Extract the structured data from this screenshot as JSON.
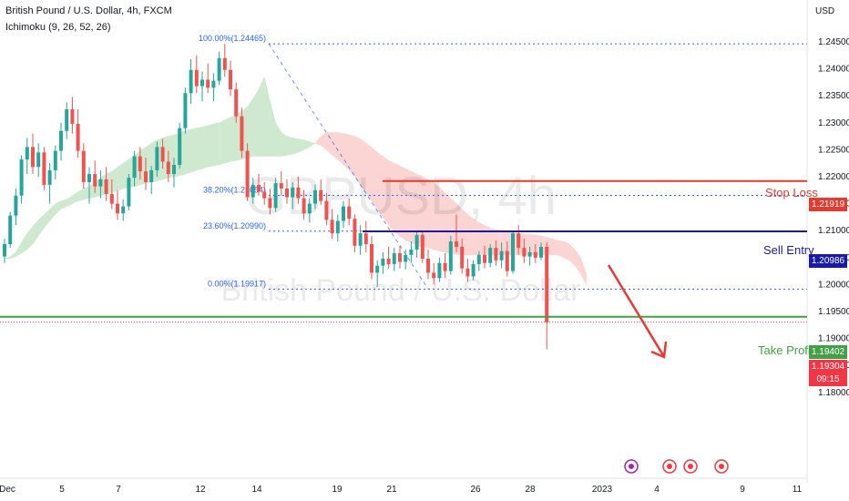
{
  "header": {
    "symbol_title": "British Pound / U.S. Dollar, 4h, FXCM",
    "indicator": "Ichimoku (9, 26, 52, 26)",
    "currency": "USD"
  },
  "watermark": {
    "ticker": "GBPUSD, 4h",
    "name": "British Pound / U.S. Dollar"
  },
  "colors": {
    "bull": "#26a69a",
    "bear": "#ef5350",
    "stop_loss": "#e03c31",
    "sell_entry": "#1a1aa6",
    "take_profit": "#43a047",
    "fib": "#2962ff",
    "cloud_bull": "#cfe9d0",
    "cloud_bear": "#fbd5d3",
    "last_price": "#f23645"
  },
  "chart_data": {
    "type": "candlestick",
    "title": "British Pound / U.S. Dollar, 4h, FXCM",
    "ylim": [
      1.175,
      1.2475
    ],
    "y_ticks": [
      "1.24500",
      "1.24000",
      "1.23500",
      "1.23000",
      "1.22500",
      "1.22000",
      "1.21500",
      "1.21000",
      "1.20500",
      "1.20000",
      "1.19500",
      "1.19000",
      "1.18500",
      "1.18000"
    ],
    "x_ticks": [
      "Dec",
      "5",
      "7",
      "12",
      "14",
      "19",
      "21",
      "26",
      "28",
      "2023",
      "4",
      "9",
      "11"
    ],
    "fibonacci": [
      {
        "label": "100.00%(1.24465)",
        "price": 1.24465
      },
      {
        "label": "38.20%(1.21654)",
        "price": 1.21654
      },
      {
        "label": "23.60%(1.20990)",
        "price": 1.2099
      },
      {
        "label": "0.00%(1.19917)",
        "price": 1.19917
      }
    ],
    "levels": [
      {
        "name": "Stop Loss",
        "price": 1.21919,
        "tag": "1.21919"
      },
      {
        "name": "Sell Entry",
        "price": 1.20986,
        "tag": "1.20986"
      },
      {
        "name": "Take Profit",
        "price": 1.19402,
        "tag": "1.19402"
      }
    ],
    "last_price": {
      "tag": "1.19304",
      "countdown": "09:15",
      "price": 1.19304
    },
    "candles": [
      {
        "o": 1.2052,
        "h": 1.2085,
        "l": 1.204,
        "c": 1.2075
      },
      {
        "o": 1.2075,
        "h": 1.2135,
        "l": 1.2068,
        "c": 1.2128
      },
      {
        "o": 1.2128,
        "h": 1.2178,
        "l": 1.211,
        "c": 1.2165
      },
      {
        "o": 1.2165,
        "h": 1.224,
        "l": 1.215,
        "c": 1.2232
      },
      {
        "o": 1.2232,
        "h": 1.2272,
        "l": 1.2205,
        "c": 1.2255
      },
      {
        "o": 1.2255,
        "h": 1.228,
        "l": 1.2205,
        "c": 1.2218
      },
      {
        "o": 1.2218,
        "h": 1.2262,
        "l": 1.22,
        "c": 1.2245
      },
      {
        "o": 1.2245,
        "h": 1.2255,
        "l": 1.2175,
        "c": 1.2185
      },
      {
        "o": 1.2185,
        "h": 1.2225,
        "l": 1.215,
        "c": 1.2212
      },
      {
        "o": 1.2212,
        "h": 1.2258,
        "l": 1.2195,
        "c": 1.2248
      },
      {
        "o": 1.2248,
        "h": 1.23,
        "l": 1.223,
        "c": 1.2285
      },
      {
        "o": 1.2285,
        "h": 1.2338,
        "l": 1.227,
        "c": 1.2325
      },
      {
        "o": 1.2325,
        "h": 1.2348,
        "l": 1.228,
        "c": 1.2298
      },
      {
        "o": 1.2298,
        "h": 1.2325,
        "l": 1.2235,
        "c": 1.2248
      },
      {
        "o": 1.2248,
        "h": 1.2262,
        "l": 1.2178,
        "c": 1.219
      },
      {
        "o": 1.219,
        "h": 1.2218,
        "l": 1.215,
        "c": 1.2205
      },
      {
        "o": 1.2205,
        "h": 1.223,
        "l": 1.217,
        "c": 1.2182
      },
      {
        "o": 1.2182,
        "h": 1.2212,
        "l": 1.216,
        "c": 1.2195
      },
      {
        "o": 1.2195,
        "h": 1.2218,
        "l": 1.2155,
        "c": 1.2168
      },
      {
        "o": 1.2168,
        "h": 1.2195,
        "l": 1.214,
        "c": 1.215
      },
      {
        "o": 1.215,
        "h": 1.2175,
        "l": 1.212,
        "c": 1.2132
      },
      {
        "o": 1.2132,
        "h": 1.2158,
        "l": 1.2118,
        "c": 1.2145
      },
      {
        "o": 1.2145,
        "h": 1.2205,
        "l": 1.2138,
        "c": 1.2198
      },
      {
        "o": 1.2198,
        "h": 1.2248,
        "l": 1.2182,
        "c": 1.2238
      },
      {
        "o": 1.2238,
        "h": 1.2255,
        "l": 1.2195,
        "c": 1.221
      },
      {
        "o": 1.221,
        "h": 1.2235,
        "l": 1.2175,
        "c": 1.219
      },
      {
        "o": 1.219,
        "h": 1.222,
        "l": 1.2168,
        "c": 1.2212
      },
      {
        "o": 1.2212,
        "h": 1.2265,
        "l": 1.22,
        "c": 1.2255
      },
      {
        "o": 1.2255,
        "h": 1.227,
        "l": 1.2215,
        "c": 1.2228
      },
      {
        "o": 1.2228,
        "h": 1.2248,
        "l": 1.219,
        "c": 1.2205
      },
      {
        "o": 1.2205,
        "h": 1.2235,
        "l": 1.218,
        "c": 1.2222
      },
      {
        "o": 1.2222,
        "h": 1.23,
        "l": 1.2215,
        "c": 1.229
      },
      {
        "o": 1.229,
        "h": 1.2365,
        "l": 1.228,
        "c": 1.2355
      },
      {
        "o": 1.2355,
        "h": 1.2418,
        "l": 1.2335,
        "c": 1.2398
      },
      {
        "o": 1.2398,
        "h": 1.2425,
        "l": 1.2355,
        "c": 1.2368
      },
      {
        "o": 1.2368,
        "h": 1.2395,
        "l": 1.234,
        "c": 1.238
      },
      {
        "o": 1.238,
        "h": 1.241,
        "l": 1.2355,
        "c": 1.2365
      },
      {
        "o": 1.2365,
        "h": 1.2392,
        "l": 1.234,
        "c": 1.2378
      },
      {
        "o": 1.2378,
        "h": 1.2432,
        "l": 1.237,
        "c": 1.242
      },
      {
        "o": 1.242,
        "h": 1.2446,
        "l": 1.2385,
        "c": 1.2398
      },
      {
        "o": 1.2398,
        "h": 1.2415,
        "l": 1.235,
        "c": 1.2362
      },
      {
        "o": 1.2362,
        "h": 1.2375,
        "l": 1.23,
        "c": 1.2312
      },
      {
        "o": 1.2312,
        "h": 1.2328,
        "l": 1.2235,
        "c": 1.2248
      },
      {
        "o": 1.2248,
        "h": 1.2262,
        "l": 1.2155,
        "c": 1.2162
      },
      {
        "o": 1.2162,
        "h": 1.2198,
        "l": 1.215,
        "c": 1.2185
      },
      {
        "o": 1.2185,
        "h": 1.2205,
        "l": 1.2165,
        "c": 1.2172
      },
      {
        "o": 1.2172,
        "h": 1.219,
        "l": 1.2148,
        "c": 1.216
      },
      {
        "o": 1.216,
        "h": 1.2178,
        "l": 1.213,
        "c": 1.2142
      },
      {
        "o": 1.2142,
        "h": 1.2198,
        "l": 1.2135,
        "c": 1.2188
      },
      {
        "o": 1.2188,
        "h": 1.221,
        "l": 1.2165,
        "c": 1.2178
      },
      {
        "o": 1.2178,
        "h": 1.2195,
        "l": 1.215,
        "c": 1.2162
      },
      {
        "o": 1.2162,
        "h": 1.219,
        "l": 1.214,
        "c": 1.218
      },
      {
        "o": 1.218,
        "h": 1.22,
        "l": 1.215,
        "c": 1.216
      },
      {
        "o": 1.216,
        "h": 1.2175,
        "l": 1.212,
        "c": 1.2132
      },
      {
        "o": 1.2132,
        "h": 1.216,
        "l": 1.2115,
        "c": 1.215
      },
      {
        "o": 1.215,
        "h": 1.2185,
        "l": 1.214,
        "c": 1.2175
      },
      {
        "o": 1.2175,
        "h": 1.2195,
        "l": 1.2148,
        "c": 1.2155
      },
      {
        "o": 1.2155,
        "h": 1.217,
        "l": 1.211,
        "c": 1.212
      },
      {
        "o": 1.212,
        "h": 1.214,
        "l": 1.2085,
        "c": 1.2095
      },
      {
        "o": 1.2095,
        "h": 1.213,
        "l": 1.208,
        "c": 1.2118
      },
      {
        "o": 1.2118,
        "h": 1.2155,
        "l": 1.2105,
        "c": 1.2145
      },
      {
        "o": 1.2145,
        "h": 1.216,
        "l": 1.211,
        "c": 1.2122
      },
      {
        "o": 1.2122,
        "h": 1.213,
        "l": 1.206,
        "c": 1.2072
      },
      {
        "o": 1.2072,
        "h": 1.211,
        "l": 1.2055,
        "c": 1.2095
      },
      {
        "o": 1.2095,
        "h": 1.2118,
        "l": 1.206,
        "c": 1.2075
      },
      {
        "o": 1.2075,
        "h": 1.209,
        "l": 1.201,
        "c": 1.2022
      },
      {
        "o": 1.2022,
        "h": 1.2045,
        "l": 1.1995,
        "c": 1.2035
      },
      {
        "o": 1.2035,
        "h": 1.206,
        "l": 1.202,
        "c": 1.2048
      },
      {
        "o": 1.2048,
        "h": 1.207,
        "l": 1.203,
        "c": 1.2038
      },
      {
        "o": 1.2038,
        "h": 1.2068,
        "l": 1.2025,
        "c": 1.2058
      },
      {
        "o": 1.2058,
        "h": 1.2072,
        "l": 1.203,
        "c": 1.2042
      },
      {
        "o": 1.2042,
        "h": 1.2065,
        "l": 1.2028,
        "c": 1.2055
      },
      {
        "o": 1.2055,
        "h": 1.208,
        "l": 1.204,
        "c": 1.2065
      },
      {
        "o": 1.2065,
        "h": 1.21,
        "l": 1.205,
        "c": 1.2092
      },
      {
        "o": 1.2092,
        "h": 1.2098,
        "l": 1.204,
        "c": 1.2048
      },
      {
        "o": 1.2048,
        "h": 1.2065,
        "l": 1.201,
        "c": 1.2022
      },
      {
        "o": 1.2022,
        "h": 1.204,
        "l": 1.2,
        "c": 1.2012
      },
      {
        "o": 1.2012,
        "h": 1.205,
        "l": 1.2005,
        "c": 1.204
      },
      {
        "o": 1.204,
        "h": 1.2058,
        "l": 1.2012,
        "c": 1.2025
      },
      {
        "o": 1.2025,
        "h": 1.209,
        "l": 1.2018,
        "c": 1.208
      },
      {
        "o": 1.208,
        "h": 1.213,
        "l": 1.206,
        "c": 1.207
      },
      {
        "o": 1.207,
        "h": 1.2085,
        "l": 1.202,
        "c": 1.203
      },
      {
        "o": 1.203,
        "h": 1.2048,
        "l": 1.2005,
        "c": 1.2015
      },
      {
        "o": 1.2015,
        "h": 1.2045,
        "l": 1.2008,
        "c": 1.2038
      },
      {
        "o": 1.2038,
        "h": 1.2062,
        "l": 1.2025,
        "c": 1.2055
      },
      {
        "o": 1.2055,
        "h": 1.2072,
        "l": 1.203,
        "c": 1.204
      },
      {
        "o": 1.204,
        "h": 1.2075,
        "l": 1.2032,
        "c": 1.2068
      },
      {
        "o": 1.2068,
        "h": 1.2082,
        "l": 1.2035,
        "c": 1.2045
      },
      {
        "o": 1.2045,
        "h": 1.2078,
        "l": 1.203,
        "c": 1.2062
      },
      {
        "o": 1.2062,
        "h": 1.208,
        "l": 1.2015,
        "c": 1.2025
      },
      {
        "o": 1.2025,
        "h": 1.21,
        "l": 1.202,
        "c": 1.2095
      },
      {
        "o": 1.2095,
        "h": 1.211,
        "l": 1.2055,
        "c": 1.2068
      },
      {
        "o": 1.2068,
        "h": 1.2085,
        "l": 1.204,
        "c": 1.2052
      },
      {
        "o": 1.2052,
        "h": 1.207,
        "l": 1.2035,
        "c": 1.206
      },
      {
        "o": 1.206,
        "h": 1.2075,
        "l": 1.204,
        "c": 1.205
      },
      {
        "o": 1.205,
        "h": 1.2078,
        "l": 1.2045,
        "c": 1.207
      },
      {
        "o": 1.207,
        "h": 1.2078,
        "l": 1.188,
        "c": 1.193
      }
    ],
    "ichimoku_cloud": [
      {
        "a": 1.2048,
        "b": 1.2048
      },
      {
        "a": 1.2052,
        "b": 1.2048
      },
      {
        "a": 1.206,
        "b": 1.2052
      },
      {
        "a": 1.2078,
        "b": 1.2058
      },
      {
        "a": 1.2095,
        "b": 1.2065
      },
      {
        "a": 1.2108,
        "b": 1.2075
      },
      {
        "a": 1.212,
        "b": 1.209
      },
      {
        "a": 1.213,
        "b": 1.2105
      },
      {
        "a": 1.214,
        "b": 1.2118
      },
      {
        "a": 1.215,
        "b": 1.213
      },
      {
        "a": 1.2155,
        "b": 1.214
      },
      {
        "a": 1.2158,
        "b": 1.2145
      },
      {
        "a": 1.2165,
        "b": 1.215
      },
      {
        "a": 1.2172,
        "b": 1.2155
      },
      {
        "a": 1.2178,
        "b": 1.2158
      },
      {
        "a": 1.2182,
        "b": 1.216
      },
      {
        "a": 1.219,
        "b": 1.2162
      },
      {
        "a": 1.2198,
        "b": 1.2165
      },
      {
        "a": 1.2205,
        "b": 1.2168
      },
      {
        "a": 1.221,
        "b": 1.217
      },
      {
        "a": 1.2218,
        "b": 1.2175
      },
      {
        "a": 1.2225,
        "b": 1.2178
      },
      {
        "a": 1.2232,
        "b": 1.218
      },
      {
        "a": 1.224,
        "b": 1.2182
      },
      {
        "a": 1.2248,
        "b": 1.2185
      },
      {
        "a": 1.2255,
        "b": 1.2188
      },
      {
        "a": 1.2262,
        "b": 1.219
      },
      {
        "a": 1.2268,
        "b": 1.2192
      },
      {
        "a": 1.2272,
        "b": 1.2195
      },
      {
        "a": 1.2275,
        "b": 1.2198
      },
      {
        "a": 1.2278,
        "b": 1.22
      },
      {
        "a": 1.228,
        "b": 1.2202
      },
      {
        "a": 1.2285,
        "b": 1.2205
      },
      {
        "a": 1.2288,
        "b": 1.2208
      },
      {
        "a": 1.229,
        "b": 1.2212
      },
      {
        "a": 1.2292,
        "b": 1.2215
      },
      {
        "a": 1.2295,
        "b": 1.2218
      },
      {
        "a": 1.2298,
        "b": 1.222
      },
      {
        "a": 1.23,
        "b": 1.2222
      },
      {
        "a": 1.2305,
        "b": 1.2225
      },
      {
        "a": 1.231,
        "b": 1.2228
      },
      {
        "a": 1.2315,
        "b": 1.223
      },
      {
        "a": 1.2322,
        "b": 1.2232
      },
      {
        "a": 1.233,
        "b": 1.2235
      },
      {
        "a": 1.2345,
        "b": 1.2238
      },
      {
        "a": 1.2362,
        "b": 1.2238
      },
      {
        "a": 1.2385,
        "b": 1.2238
      },
      {
        "a": 1.234,
        "b": 1.2238
      },
      {
        "a": 1.23,
        "b": 1.2238
      },
      {
        "a": 1.2282,
        "b": 1.2238
      },
      {
        "a": 1.2275,
        "b": 1.224
      },
      {
        "a": 1.2272,
        "b": 1.2242
      },
      {
        "a": 1.227,
        "b": 1.2245
      },
      {
        "a": 1.2268,
        "b": 1.225
      },
      {
        "a": 1.2265,
        "b": 1.2255
      },
      {
        "a": 1.2262,
        "b": 1.2262
      },
      {
        "a": 1.2258,
        "b": 1.2275
      },
      {
        "a": 1.225,
        "b": 1.2282
      },
      {
        "a": 1.224,
        "b": 1.2282
      },
      {
        "a": 1.2232,
        "b": 1.2282
      },
      {
        "a": 1.2222,
        "b": 1.228
      },
      {
        "a": 1.2212,
        "b": 1.2278
      },
      {
        "a": 1.22,
        "b": 1.2275
      },
      {
        "a": 1.2185,
        "b": 1.227
      },
      {
        "a": 1.217,
        "b": 1.2262
      },
      {
        "a": 1.2155,
        "b": 1.2255
      },
      {
        "a": 1.214,
        "b": 1.2245
      },
      {
        "a": 1.2125,
        "b": 1.2238
      },
      {
        "a": 1.211,
        "b": 1.223
      },
      {
        "a": 1.2098,
        "b": 1.2225
      },
      {
        "a": 1.209,
        "b": 1.222
      },
      {
        "a": 1.2082,
        "b": 1.2215
      },
      {
        "a": 1.2078,
        "b": 1.221
      },
      {
        "a": 1.2072,
        "b": 1.2205
      },
      {
        "a": 1.207,
        "b": 1.22
      },
      {
        "a": 1.2068,
        "b": 1.2195
      },
      {
        "a": 1.2065,
        "b": 1.219
      },
      {
        "a": 1.2062,
        "b": 1.218
      },
      {
        "a": 1.206,
        "b": 1.217
      },
      {
        "a": 1.2058,
        "b": 1.216
      },
      {
        "a": 1.2056,
        "b": 1.215
      },
      {
        "a": 1.2055,
        "b": 1.214
      },
      {
        "a": 1.2055,
        "b": 1.213
      },
      {
        "a": 1.2055,
        "b": 1.2122
      },
      {
        "a": 1.2055,
        "b": 1.2115
      },
      {
        "a": 1.2055,
        "b": 1.211
      },
      {
        "a": 1.2055,
        "b": 1.2105
      },
      {
        "a": 1.2055,
        "b": 1.2102
      },
      {
        "a": 1.2055,
        "b": 1.21
      },
      {
        "a": 1.2055,
        "b": 1.2098
      },
      {
        "a": 1.2055,
        "b": 1.2096
      },
      {
        "a": 1.2055,
        "b": 1.2095
      },
      {
        "a": 1.2055,
        "b": 1.2094
      },
      {
        "a": 1.2055,
        "b": 1.2093
      },
      {
        "a": 1.2055,
        "b": 1.2092
      },
      {
        "a": 1.2055,
        "b": 1.209
      },
      {
        "a": 1.2055,
        "b": 1.2088
      },
      {
        "a": 1.2055,
        "b": 1.2085
      },
      {
        "a": 1.2055,
        "b": 1.2082
      },
      {
        "a": 1.205,
        "b": 1.208
      },
      {
        "a": 1.2045,
        "b": 1.2075
      },
      {
        "a": 1.2035,
        "b": 1.2065
      },
      {
        "a": 1.202,
        "b": 1.205
      },
      {
        "a": 1.2,
        "b": 1.202
      }
    ]
  }
}
